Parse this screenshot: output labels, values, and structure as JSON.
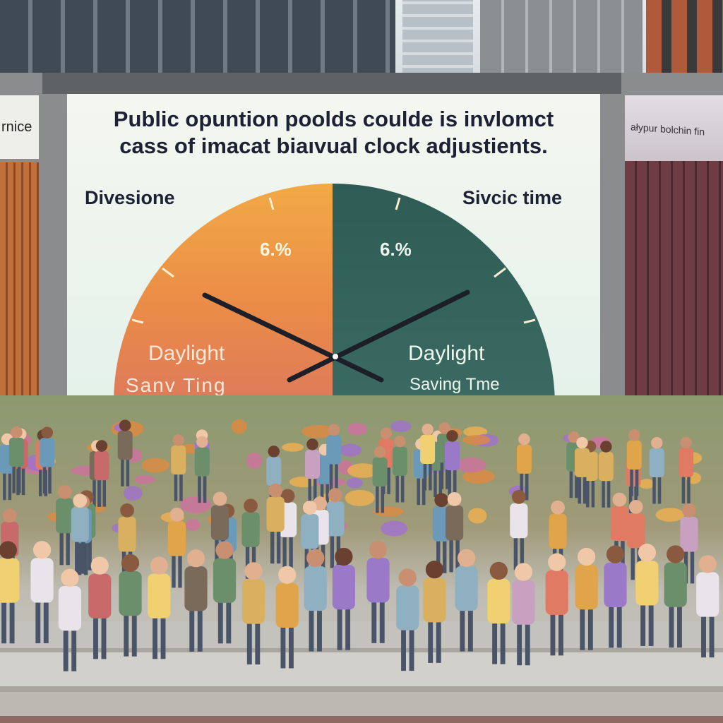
{
  "billboard": {
    "headline_line1": "Public opuntion poolds coulde is invlomct",
    "headline_line2": "cass of imacat biaıvual clock adjustients.",
    "label_left": "Divesione",
    "label_right": "Sivcic time",
    "left_half": {
      "percent": "6.%",
      "line1": "Daylight",
      "line2": "Sanv Ting",
      "color": "#f0a043"
    },
    "right_half": {
      "percent": "6.%",
      "line1": "Daylight",
      "line2": "Saving Tme",
      "color": "#2f5d58"
    }
  },
  "side_signs": {
    "left": "rnice",
    "right": "ałypur bolchin fin"
  }
}
